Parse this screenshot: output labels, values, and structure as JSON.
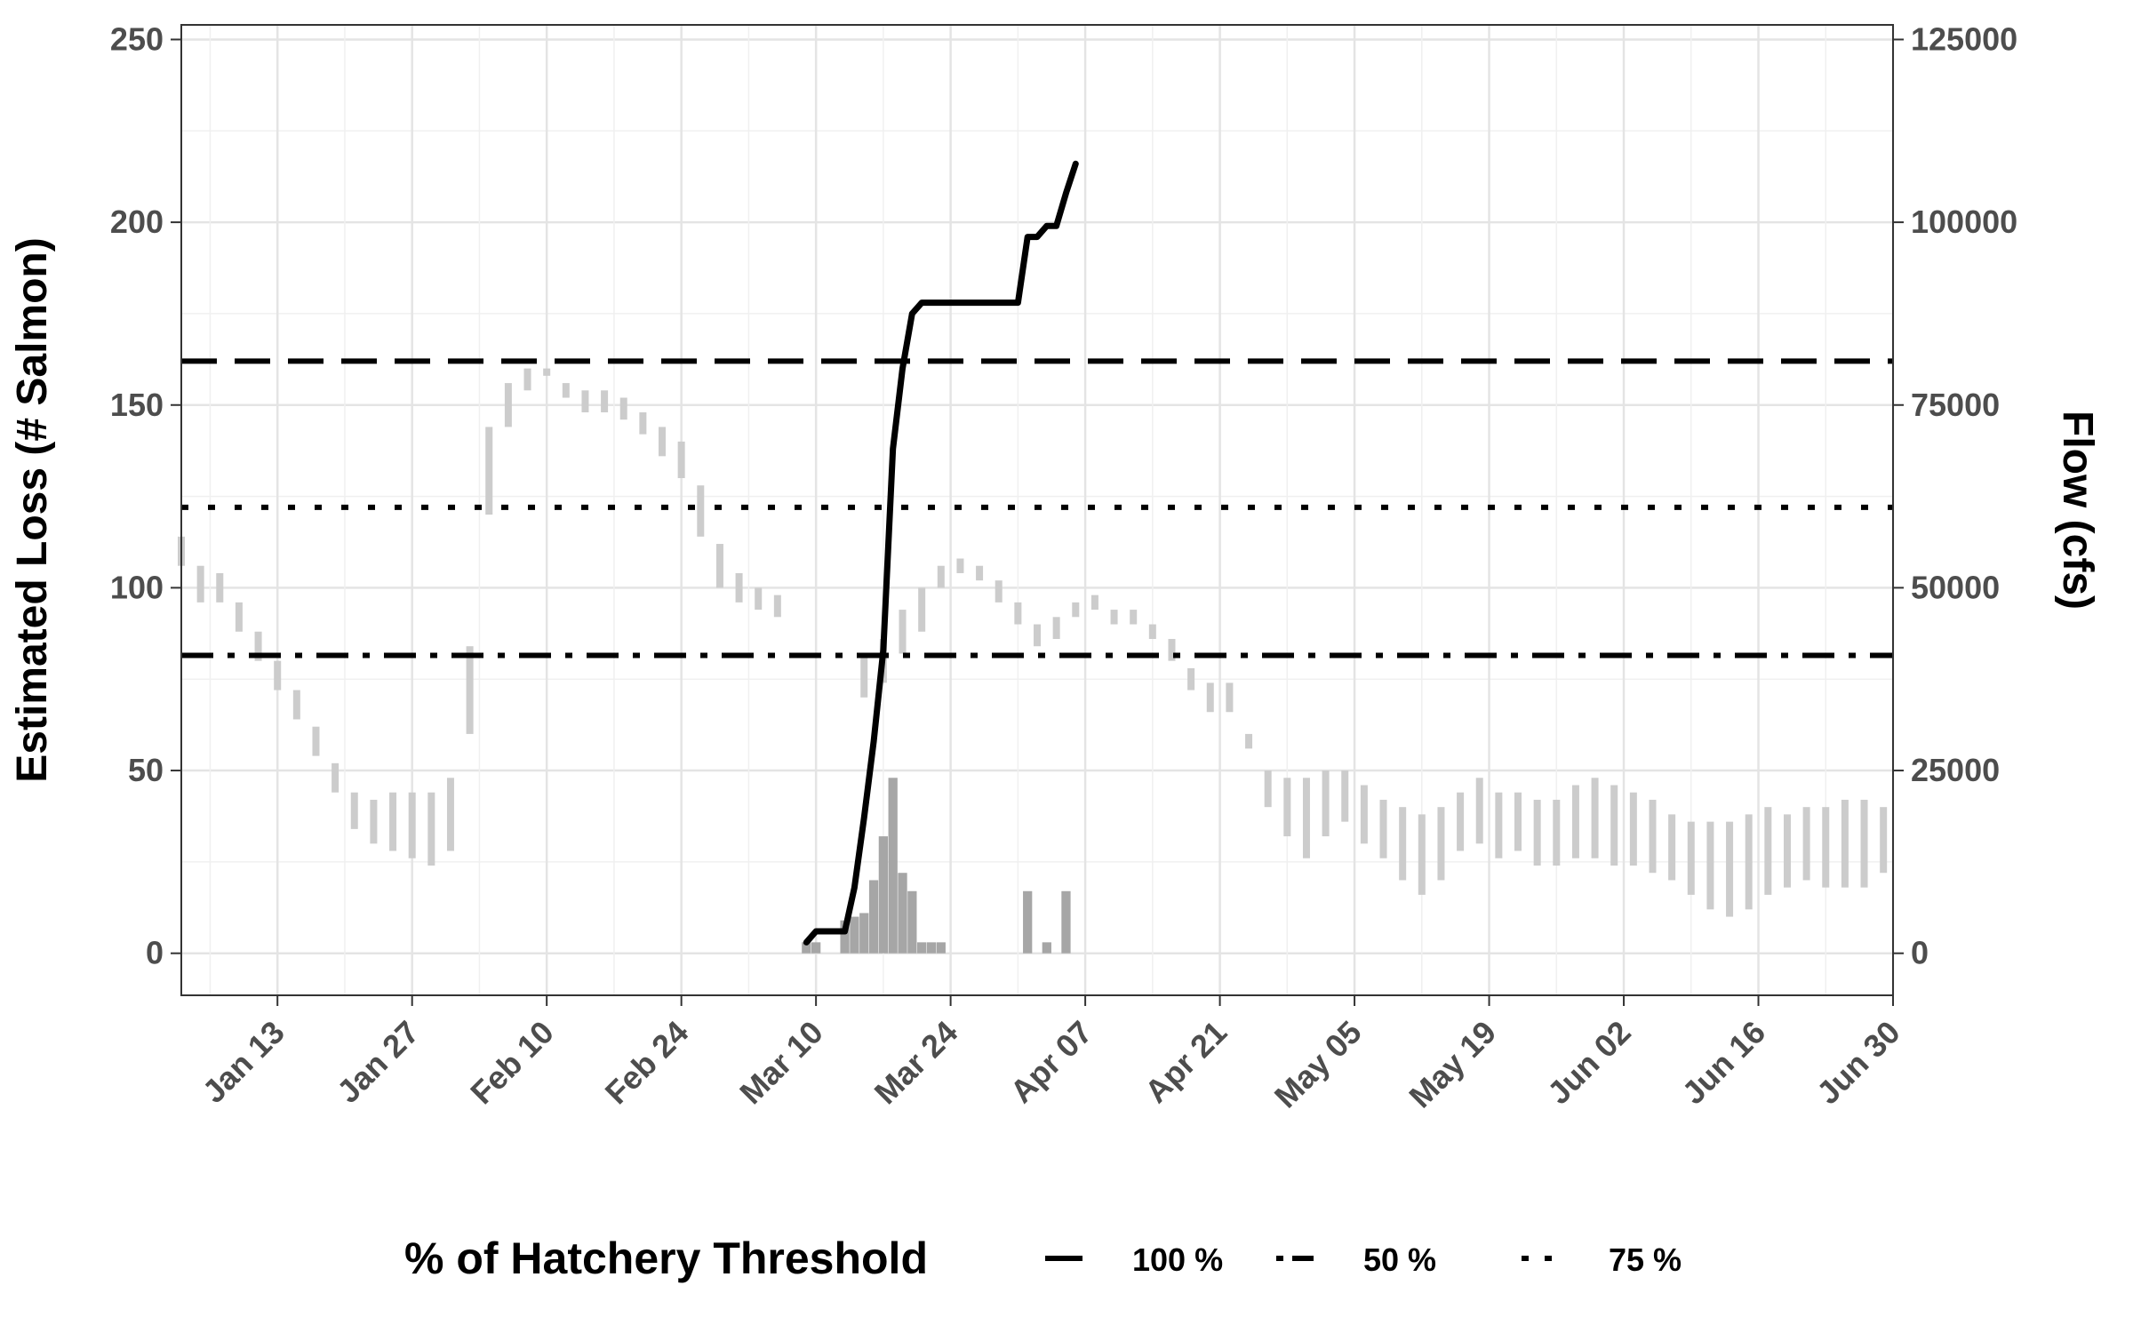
{
  "chart_data": {
    "type": "line",
    "title": "",
    "ylabel": "Estimated Loss (# Salmon)",
    "y2label": "Flow (cfs)",
    "ylim": [
      -11.5,
      254
    ],
    "y2lim": [
      -5750,
      127000
    ],
    "y_ticks": [
      0,
      50,
      100,
      150,
      200,
      250
    ],
    "y_tick_labels": [
      "0",
      "50",
      "100",
      "150",
      "200",
      "250"
    ],
    "y2_ticks": [
      0,
      25000,
      50000,
      75000,
      100000,
      125000
    ],
    "y2_tick_labels": [
      "0",
      "25000",
      "50000",
      "75000",
      "100000",
      "125000"
    ],
    "xlim": [
      "2025-01-03",
      "2025-06-30"
    ],
    "x_ticks": [
      "2025-01-13",
      "2025-01-27",
      "2025-02-10",
      "2025-02-24",
      "2025-03-10",
      "2025-03-24",
      "2025-04-07",
      "2025-04-21",
      "2025-05-05",
      "2025-05-19",
      "2025-06-02",
      "2025-06-16",
      "2025-06-30"
    ],
    "x_tick_labels": [
      "Jan 13",
      "Jan 27",
      "Feb 10",
      "Feb 24",
      "Mar 10",
      "Mar 24",
      "Apr 07",
      "Apr 21",
      "May 05",
      "May 19",
      "Jun 02",
      "Jun 16",
      "Jun 30"
    ],
    "grid": true,
    "legend": {
      "position": "bottom",
      "title": "% of Hatchery Threshold",
      "entries": [
        {
          "label": "100 %",
          "dash": "dashed"
        },
        {
          "label": "50 %",
          "dash": "dotdash"
        },
        {
          "label": "75 %",
          "dash": "dotted"
        }
      ]
    },
    "thresholds": [
      {
        "label": "100 %",
        "value": 162,
        "dash": "dashed"
      },
      {
        "label": "75 %",
        "value": 122,
        "dash": "dotted"
      },
      {
        "label": "50 %",
        "value": 81.5,
        "dash": "dotdash"
      }
    ],
    "series": [
      {
        "name": "",
        "kind": "flow-ribbon",
        "axis": "right",
        "color": "#cccccc",
        "x": [
          "2025-01-03",
          "2025-01-05",
          "2025-01-07",
          "2025-01-09",
          "2025-01-11",
          "2025-01-13",
          "2025-01-15",
          "2025-01-17",
          "2025-01-19",
          "2025-01-21",
          "2025-01-23",
          "2025-01-25",
          "2025-01-27",
          "2025-01-29",
          "2025-01-31",
          "2025-02-02",
          "2025-02-04",
          "2025-02-06",
          "2025-02-08",
          "2025-02-10",
          "2025-02-12",
          "2025-02-14",
          "2025-02-16",
          "2025-02-18",
          "2025-02-20",
          "2025-02-22",
          "2025-02-24",
          "2025-02-26",
          "2025-02-28",
          "2025-03-02",
          "2025-03-04",
          "2025-03-06",
          "2025-03-15",
          "2025-03-17",
          "2025-03-19",
          "2025-03-21",
          "2025-03-23",
          "2025-03-25",
          "2025-03-27",
          "2025-03-29",
          "2025-03-31",
          "2025-04-02",
          "2025-04-04",
          "2025-04-06",
          "2025-04-08",
          "2025-04-10",
          "2025-04-12",
          "2025-04-14",
          "2025-04-16",
          "2025-04-18",
          "2025-04-20",
          "2025-04-22",
          "2025-04-24",
          "2025-04-26",
          "2025-04-28",
          "2025-04-30",
          "2025-05-02",
          "2025-05-04",
          "2025-05-06",
          "2025-05-08",
          "2025-05-10",
          "2025-05-12",
          "2025-05-14",
          "2025-05-16",
          "2025-05-18",
          "2025-05-20",
          "2025-05-22",
          "2025-05-24",
          "2025-05-26",
          "2025-05-28",
          "2025-05-30",
          "2025-06-01",
          "2025-06-03",
          "2025-06-05",
          "2025-06-07",
          "2025-06-09",
          "2025-06-11",
          "2025-06-13",
          "2025-06-15",
          "2025-06-17",
          "2025-06-19",
          "2025-06-21",
          "2025-06-23",
          "2025-06-25",
          "2025-06-27",
          "2025-06-29"
        ],
        "low": [
          53000,
          48000,
          48000,
          44000,
          40000,
          36000,
          32000,
          27000,
          22000,
          17000,
          15000,
          14000,
          13000,
          12000,
          14000,
          30000,
          60000,
          72000,
          77000,
          79000,
          76000,
          74000,
          74000,
          73000,
          71000,
          68000,
          65000,
          57000,
          50000,
          48000,
          47000,
          46000,
          35000,
          37000,
          41000,
          44000,
          50000,
          52000,
          51000,
          48000,
          45000,
          42000,
          43000,
          46000,
          47000,
          45000,
          45000,
          43000,
          40000,
          36000,
          33000,
          33000,
          28000,
          20000,
          16000,
          13000,
          16000,
          18000,
          15000,
          13000,
          10000,
          8000,
          10000,
          14000,
          15000,
          13000,
          14000,
          12000,
          12000,
          13000,
          13000,
          12000,
          12000,
          11000,
          10000,
          8000,
          6000,
          5000,
          6000,
          8000,
          9000,
          10000,
          9000,
          9000,
          9000,
          11000
        ],
        "high": [
          57000,
          53000,
          52000,
          48000,
          44000,
          40000,
          36000,
          31000,
          26000,
          22000,
          21000,
          22000,
          22000,
          22000,
          24000,
          42000,
          72000,
          78000,
          80000,
          80000,
          78000,
          77000,
          77000,
          76000,
          74000,
          72000,
          70000,
          64000,
          56000,
          52000,
          50000,
          49000,
          41000,
          43000,
          47000,
          50000,
          53000,
          54000,
          53000,
          51000,
          48000,
          45000,
          46000,
          48000,
          49000,
          47000,
          47000,
          45000,
          43000,
          39000,
          37000,
          37000,
          30000,
          25000,
          24000,
          24000,
          25000,
          25000,
          23000,
          21000,
          20000,
          19000,
          20000,
          22000,
          24000,
          22000,
          22000,
          21000,
          21000,
          23000,
          24000,
          23000,
          22000,
          21000,
          19000,
          18000,
          18000,
          18000,
          19000,
          20000,
          19000,
          20000,
          20000,
          21000,
          21000,
          20000
        ]
      },
      {
        "name": "",
        "kind": "bars",
        "axis": "left",
        "color": "#a6a6a6",
        "x": [
          "2025-03-09",
          "2025-03-10",
          "2025-03-13",
          "2025-03-14",
          "2025-03-15",
          "2025-03-16",
          "2025-03-17",
          "2025-03-18",
          "2025-03-19",
          "2025-03-20",
          "2025-03-21",
          "2025-03-22",
          "2025-03-23",
          "2025-04-01",
          "2025-04-03",
          "2025-04-05"
        ],
        "values": [
          3,
          3,
          9,
          10,
          11,
          20,
          32,
          48,
          22,
          17,
          3,
          3,
          3,
          17,
          3,
          17
        ]
      },
      {
        "name": "",
        "kind": "cumulative-line",
        "axis": "left",
        "color": "#000000",
        "x": [
          "2025-03-09",
          "2025-03-10",
          "2025-03-11",
          "2025-03-12",
          "2025-03-13",
          "2025-03-14",
          "2025-03-15",
          "2025-03-16",
          "2025-03-17",
          "2025-03-18",
          "2025-03-19",
          "2025-03-20",
          "2025-03-21",
          "2025-03-22",
          "2025-03-23",
          "2025-03-24",
          "2025-03-26",
          "2025-03-28",
          "2025-03-30",
          "2025-03-31",
          "2025-04-01",
          "2025-04-02",
          "2025-04-03",
          "2025-04-04",
          "2025-04-05",
          "2025-04-06"
        ],
        "values": [
          3,
          6,
          6,
          6,
          6,
          18,
          37,
          58,
          83,
          138,
          160,
          175,
          178,
          178,
          178,
          178,
          178,
          178,
          178,
          178,
          196,
          196,
          199,
          199,
          208,
          216
        ]
      }
    ]
  }
}
